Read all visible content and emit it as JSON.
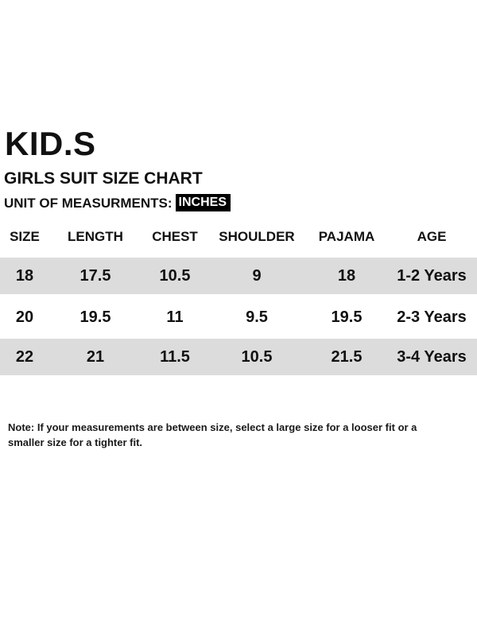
{
  "brand": "KID.S",
  "subtitle": "GIRLS SUIT SIZE CHART",
  "unit": {
    "label": "UNIT OF MEASURMENTS:",
    "value": "INCHES"
  },
  "table": {
    "headers": [
      "SIZE",
      "LENGTH",
      "CHEST",
      "SHOULDER",
      "PAJAMA",
      "AGE"
    ],
    "rows": [
      [
        "18",
        "17.5",
        "10.5",
        "9",
        "18",
        "1-2 Years"
      ],
      [
        "20",
        "19.5",
        "11",
        "9.5",
        "19.5",
        "2-3 Years"
      ],
      [
        "22",
        "21",
        "11.5",
        "10.5",
        "21.5",
        "3-4 Years"
      ]
    ],
    "shaded_row_color": "#dcdcdc"
  },
  "note": "Note: If your measurements are between size, select a large size for a looser fit or a smaller size for a tighter fit."
}
